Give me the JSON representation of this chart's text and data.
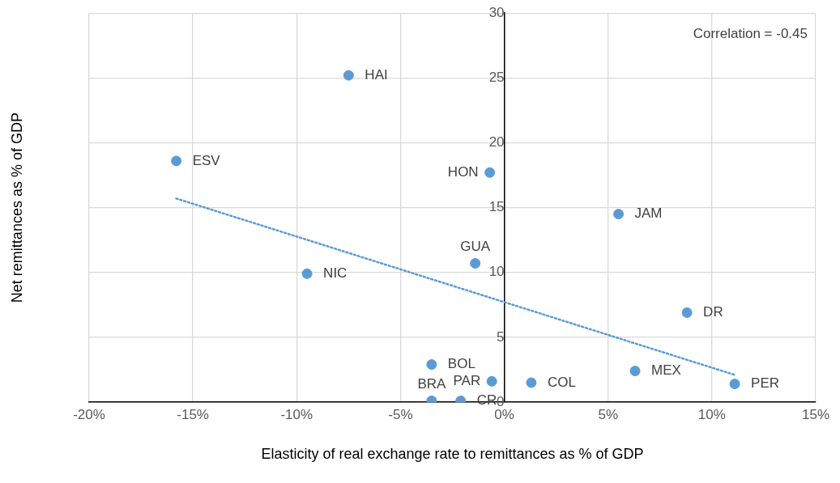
{
  "chart_data": {
    "type": "scatter",
    "xlabel": "Elasticity of real exchange rate to remittances as % of GDP",
    "ylabel": "Net remittances as % of GDP",
    "xlim": [
      -20,
      15
    ],
    "xticks": [
      {
        "value": -20,
        "label": "-20%"
      },
      {
        "value": -15,
        "label": "-15%"
      },
      {
        "value": -10,
        "label": "-10%"
      },
      {
        "value": -5,
        "label": "-5%"
      },
      {
        "value": 0,
        "label": "0%"
      },
      {
        "value": 5,
        "label": "5%"
      },
      {
        "value": 10,
        "label": "10%"
      },
      {
        "value": 15,
        "label": "15%"
      }
    ],
    "ylim": [
      0,
      30
    ],
    "yticks": [
      0,
      5,
      10,
      15,
      20,
      25,
      30
    ],
    "grid": true,
    "legend": false,
    "marker": "circle",
    "series": [
      {
        "color": "#5b9bd5",
        "x": [
          -7.5,
          -15.8,
          -0.7,
          5.5,
          -1.4,
          -9.5,
          8.8,
          -3.5,
          -0.6,
          1.3,
          6.3,
          11.1,
          -3.5,
          -2.1
        ],
        "values": [
          25.2,
          18.6,
          17.7,
          14.5,
          10.7,
          9.9,
          6.9,
          2.9,
          1.6,
          1.5,
          2.4,
          1.4,
          0.1,
          0.1
        ]
      },
      {
        "type": "line",
        "color": "#5b9bd5",
        "line_style": "dotted",
        "marker": "none",
        "x": [
          -15.8,
          11.1
        ],
        "values": [
          15.7,
          2.1
        ]
      }
    ],
    "annotations": [
      "Correlation = -0.45",
      {
        "text": "HAI",
        "x": -7.5,
        "y": 25.2
      },
      {
        "text": "ESV",
        "x": -15.8,
        "y": 18.6
      },
      {
        "text": "HON",
        "x": -0.7,
        "y": 17.7
      },
      {
        "text": "JAM",
        "x": 5.5,
        "y": 14.5
      },
      {
        "text": "GUA",
        "x": -1.4,
        "y": 10.7
      },
      {
        "text": "NIC",
        "x": -9.5,
        "y": 9.9
      },
      {
        "text": "DR",
        "x": 8.8,
        "y": 6.9
      },
      {
        "text": "BOL",
        "x": -3.5,
        "y": 2.9
      },
      {
        "text": "PAR",
        "x": -0.6,
        "y": 1.6
      },
      {
        "text": "COL",
        "x": 1.3,
        "y": 1.5
      },
      {
        "text": "MEX",
        "x": 6.3,
        "y": 2.4
      },
      {
        "text": "PER",
        "x": 11.1,
        "y": 1.4
      },
      {
        "text": "BRA",
        "x": -3.5,
        "y": 0.1
      },
      {
        "text": "CR",
        "x": -2.1,
        "y": 0.1
      }
    ]
  }
}
